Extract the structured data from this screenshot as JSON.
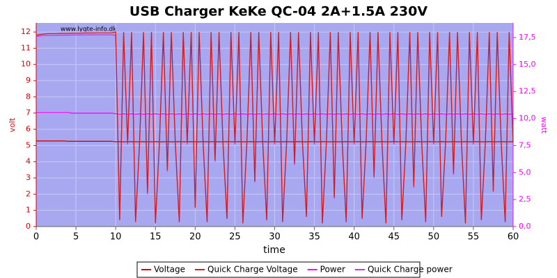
{
  "chart_data": {
    "type": "line",
    "title": "USB Charger KeKe QC-04 2A+1.5A 230V",
    "xlabel": "time",
    "ylabel": "volt",
    "y2label": "watt",
    "annotation": "www.lygte-info.dk",
    "xlim": [
      0,
      60
    ],
    "xticks": [
      0,
      5,
      10,
      15,
      20,
      25,
      30,
      35,
      40,
      45,
      50,
      55,
      60
    ],
    "ylim": [
      0,
      12.56
    ],
    "yticks": [
      0,
      1,
      2,
      3,
      4,
      5,
      6,
      7,
      8,
      9,
      10,
      11,
      12
    ],
    "y2lim": [
      0,
      18.85
    ],
    "y2ticks": [
      {
        "value": 0,
        "label": "0,0"
      },
      {
        "value": 2.5,
        "label": "2,5"
      },
      {
        "value": 5,
        "label": "5,0"
      },
      {
        "value": 7.5,
        "label": "7,5"
      },
      {
        "value": 10,
        "label": "10,0"
      },
      {
        "value": 12.5,
        "label": "12,5"
      },
      {
        "value": 15,
        "label": "15,0"
      },
      {
        "value": 17.5,
        "label": "17,5"
      }
    ],
    "grid": true,
    "legend": "bottom",
    "x": [
      0,
      0.5,
      1,
      1.5,
      2,
      2.5,
      3,
      3.5,
      4,
      4.5,
      5,
      5.5,
      6,
      6.5,
      7,
      7.5,
      8,
      8.5,
      9,
      9.5,
      10,
      10.5,
      11,
      11.5,
      12,
      12.5,
      13,
      13.5,
      14,
      14.5,
      15,
      15.5,
      16,
      16.5,
      17,
      17.5,
      18,
      18.5,
      19,
      19.5,
      20,
      20.5,
      21,
      21.5,
      22,
      22.5,
      23,
      23.5,
      24,
      24.5,
      25,
      25.5,
      26,
      26.5,
      27,
      27.5,
      28,
      28.5,
      29,
      29.5,
      30,
      30.5,
      31,
      31.5,
      32,
      32.5,
      33,
      33.5,
      34,
      34.5,
      35,
      35.5,
      36,
      36.5,
      37,
      37.5,
      38,
      38.5,
      39,
      39.5,
      40,
      40.5,
      41,
      41.5,
      42,
      42.5,
      43,
      43.5,
      44,
      44.5,
      45,
      45.5,
      46,
      46.5,
      47,
      47.5,
      48,
      48.5,
      49,
      49.5,
      50,
      50.5,
      51,
      51.5,
      52,
      52.5,
      53,
      53.5,
      54,
      54.5,
      55,
      55.5,
      56,
      56.5,
      57,
      57.5,
      58,
      58.5,
      59,
      59.5,
      60
    ],
    "series": [
      {
        "name": "Voltage",
        "color": "#d40000",
        "axis": "y",
        "values": [
          5.28,
          5.28,
          5.28,
          5.28,
          5.28,
          5.28,
          5.28,
          5.28,
          5.26,
          5.26,
          5.26,
          5.26,
          5.26,
          5.26,
          5.26,
          5.26,
          5.26,
          5.26,
          5.26,
          5.26,
          5.23,
          5.24,
          5.23,
          5.23,
          5.24,
          5.23,
          5.23,
          5.24,
          5.23,
          5.23,
          5.24,
          5.23,
          5.23,
          5.24,
          5.23,
          5.23,
          5.24,
          5.23,
          5.23,
          5.24,
          5.23,
          5.23,
          5.24,
          5.23,
          5.23,
          5.24,
          5.23,
          5.23,
          5.24,
          5.23,
          5.23,
          5.24,
          5.23,
          5.23,
          5.24,
          5.23,
          5.23,
          5.24,
          5.23,
          5.23,
          5.24,
          5.23,
          5.23,
          5.24,
          5.23,
          5.23,
          5.24,
          5.23,
          5.23,
          5.24,
          5.23,
          5.23,
          5.24,
          5.23,
          5.23,
          5.24,
          5.23,
          5.23,
          5.24,
          5.23,
          5.23,
          5.24,
          5.23,
          5.23,
          5.24,
          5.23,
          5.23,
          5.24,
          5.23,
          5.23,
          5.24,
          5.23,
          5.23,
          5.24,
          5.23,
          5.23,
          5.24,
          5.23,
          5.23,
          5.24,
          5.23,
          5.23,
          5.24,
          5.23,
          5.23,
          5.24,
          5.23,
          5.23,
          5.24,
          5.23,
          5.23,
          5.24,
          5.23,
          5.23,
          5.24,
          5.23,
          5.23,
          5.24,
          5.23,
          5.23,
          5.24
        ]
      },
      {
        "name": "Quick Charge Voltage",
        "color": "#cc2020",
        "axis": "y",
        "values": [
          11.8,
          11.85,
          11.88,
          11.9,
          11.9,
          11.9,
          11.92,
          11.92,
          11.92,
          11.93,
          11.93,
          11.93,
          11.94,
          11.94,
          11.94,
          11.95,
          11.95,
          11.95,
          11.95,
          11.95,
          12,
          0.4,
          12,
          5.2,
          12,
          0.3,
          5.2,
          12,
          2.1,
          12,
          0.2,
          5.2,
          12,
          3.5,
          12,
          5.2,
          0.3,
          12,
          5.2,
          12,
          1.2,
          12,
          5.2,
          0.3,
          12,
          4.1,
          12,
          5.2,
          0.5,
          12,
          5.2,
          12,
          0.2,
          5.2,
          12,
          2.8,
          12,
          5.2,
          0.4,
          12,
          5.2,
          12,
          0.3,
          5.2,
          12,
          3.9,
          12,
          5.2,
          0.6,
          12,
          5.2,
          12,
          0.2,
          5.2,
          12,
          1.8,
          12,
          5.2,
          0.3,
          12,
          5.2,
          12,
          0.5,
          5.2,
          12,
          3.1,
          12,
          5.2,
          0.2,
          12,
          5.2,
          12,
          0.4,
          5.2,
          12,
          2.5,
          12,
          5.2,
          0.3,
          12,
          5.2,
          12,
          0.6,
          5.2,
          12,
          3.3,
          12,
          5.2,
          0.2,
          12,
          5.2,
          12,
          0.4,
          5.2,
          12,
          2.2,
          12,
          5.2,
          0.3,
          12,
          5.2
        ]
      },
      {
        "name": "Power",
        "color": "#ff00ff",
        "axis": "y2",
        "values": [
          10.55,
          10.55,
          10.55,
          10.55,
          10.55,
          10.55,
          10.55,
          10.55,
          10.55,
          10.5,
          10.5,
          10.5,
          10.5,
          10.5,
          10.5,
          10.5,
          10.5,
          10.5,
          10.5,
          10.5,
          10.45,
          10.4,
          10.45,
          10.4,
          10.45,
          10.4,
          10.45,
          10.4,
          10.45,
          10.4,
          10.45,
          10.4,
          10.45,
          10.4,
          10.45,
          10.4,
          10.45,
          10.4,
          10.45,
          10.4,
          10.45,
          10.4,
          10.45,
          10.4,
          10.45,
          10.4,
          10.45,
          10.4,
          10.45,
          10.4,
          10.45,
          10.4,
          10.45,
          10.4,
          10.45,
          10.4,
          10.45,
          10.4,
          10.45,
          10.4,
          10.45,
          10.4,
          10.45,
          10.4,
          10.45,
          10.4,
          10.45,
          10.4,
          10.45,
          10.4,
          10.45,
          10.4,
          10.45,
          10.4,
          10.45,
          10.4,
          10.45,
          10.4,
          10.45,
          10.4,
          10.45,
          10.4,
          10.45,
          10.4,
          10.45,
          10.4,
          10.45,
          10.4,
          10.45,
          10.4,
          10.45,
          10.4,
          10.45,
          10.4,
          10.45,
          10.4,
          10.45,
          10.4,
          10.45,
          10.4,
          10.45,
          10.4,
          10.45,
          10.4,
          10.45,
          10.4,
          10.45,
          10.4,
          10.45,
          10.4,
          10.45,
          10.4,
          10.45,
          10.4,
          10.45,
          10.4,
          10.45,
          10.4,
          10.45,
          10.4,
          10.45
        ]
      },
      {
        "name": "Quick Charge power",
        "color": "#cc33cc",
        "axis": "y2",
        "values": [
          17.6,
          17.65,
          17.7,
          17.7,
          17.7,
          17.7,
          17.72,
          17.72,
          17.72,
          17.73,
          17.73,
          17.73,
          17.74,
          17.74,
          17.74,
          17.75,
          17.75,
          17.75,
          17.75,
          17.75,
          17.7,
          0.6,
          17.7,
          7.6,
          17.7,
          0.4,
          7.6,
          17.7,
          3.0,
          17.7,
          0.3,
          7.6,
          17.7,
          5.1,
          17.7,
          7.6,
          0.4,
          17.7,
          7.6,
          17.7,
          1.7,
          17.7,
          7.6,
          0.4,
          17.7,
          6.0,
          17.7,
          7.6,
          0.7,
          17.7,
          7.6,
          17.7,
          0.3,
          7.6,
          17.7,
          4.1,
          17.7,
          7.6,
          0.6,
          17.7,
          7.6,
          17.7,
          0.4,
          7.6,
          17.7,
          5.7,
          17.7,
          7.6,
          0.9,
          17.7,
          7.6,
          17.7,
          0.3,
          7.6,
          17.7,
          2.6,
          17.7,
          7.6,
          0.4,
          17.7,
          7.6,
          17.7,
          0.7,
          7.6,
          17.7,
          4.5,
          17.7,
          7.6,
          0.3,
          17.7,
          7.6,
          17.7,
          0.6,
          7.6,
          17.7,
          3.6,
          17.7,
          7.6,
          0.4,
          17.7,
          7.6,
          17.7,
          0.9,
          7.6,
          17.7,
          4.8,
          17.7,
          7.6,
          0.3,
          17.7,
          7.6,
          17.7,
          0.6,
          7.6,
          17.7,
          3.2,
          17.7,
          7.6,
          0.4,
          17.7,
          7.6
        ]
      }
    ]
  }
}
